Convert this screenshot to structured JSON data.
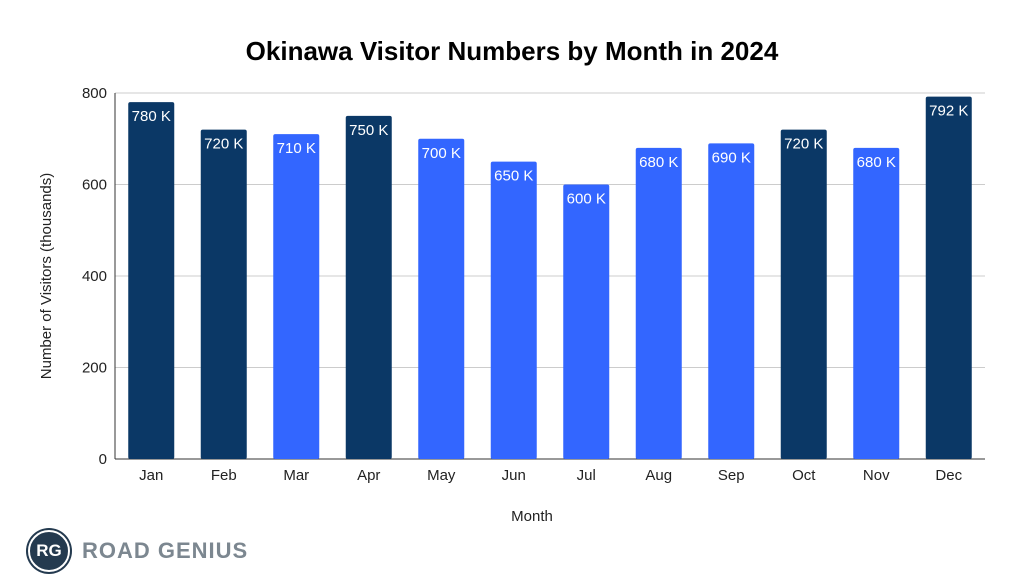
{
  "chart_data": {
    "type": "bar",
    "title": "Okinawa Visitor Numbers by Month in 2024",
    "xlabel": "Month",
    "ylabel": "Number of Visitors (thousands)",
    "ylim": [
      0,
      800
    ],
    "yticks": [
      0,
      200,
      400,
      600,
      800
    ],
    "grid": true,
    "categories": [
      "Jan",
      "Feb",
      "Mar",
      "Apr",
      "May",
      "Jun",
      "Jul",
      "Aug",
      "Sep",
      "Oct",
      "Nov",
      "Dec"
    ],
    "values": [
      780,
      720,
      710,
      750,
      700,
      650,
      600,
      680,
      690,
      720,
      680,
      792
    ],
    "data_labels": [
      "780 K",
      "720 K",
      "710 K",
      "750 K",
      "700 K",
      "650 K",
      "600 K",
      "680 K",
      "690 K",
      "720 K",
      "680 K",
      "792 K"
    ],
    "highlighted": [
      true,
      true,
      false,
      true,
      false,
      false,
      false,
      false,
      false,
      true,
      false,
      true
    ],
    "colors": {
      "highlight": "#0b3866",
      "default": "#3366ff"
    }
  },
  "logo": {
    "mark": "RG",
    "text": "ROAD GENIUS"
  }
}
